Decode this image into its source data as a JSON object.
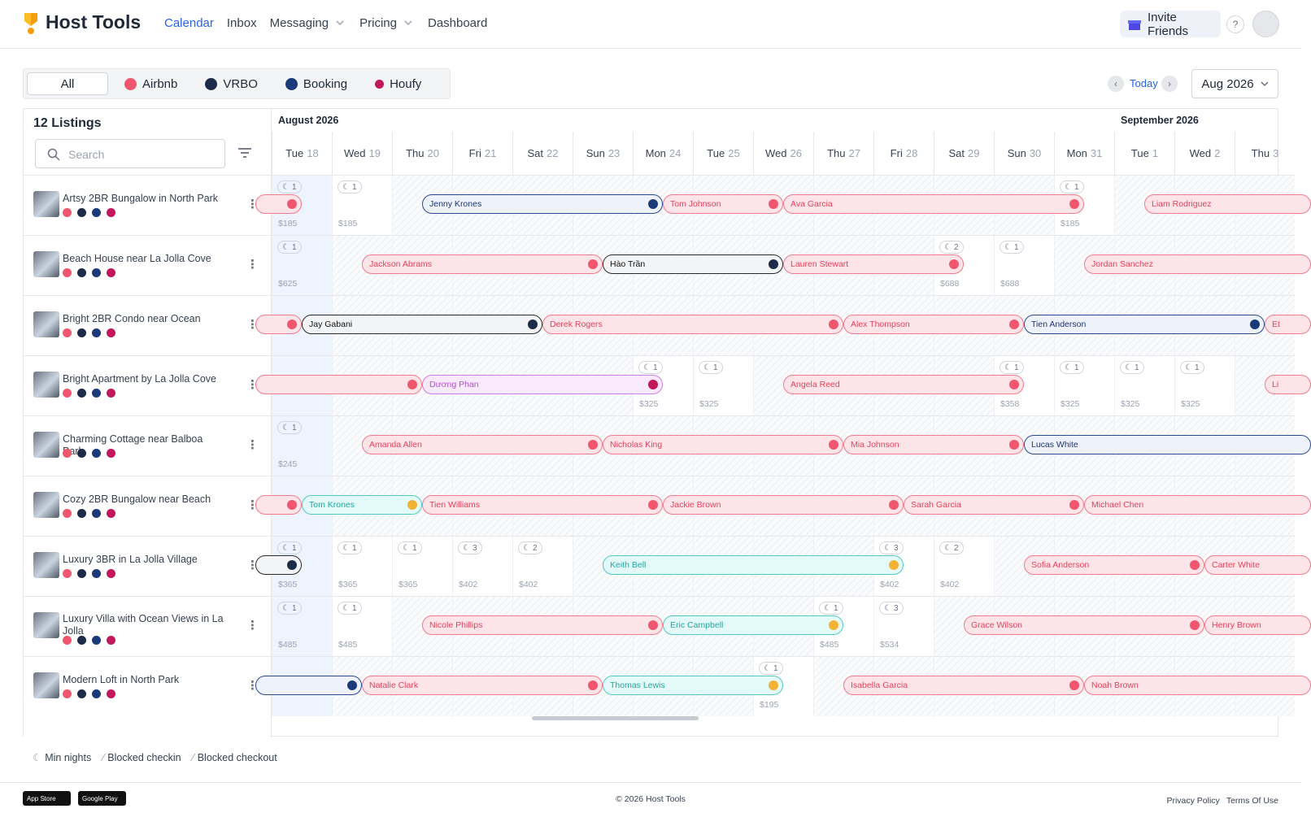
{
  "header": {
    "brand": "Host Tools",
    "nav": [
      "Calendar",
      "Inbox",
      "Messaging",
      "Pricing",
      "Dashboard"
    ],
    "invite": "Invite Friends",
    "help": "?"
  },
  "filters": {
    "tabs": [
      "All",
      "Airbnb",
      "VRBO",
      "Booking",
      "Houfy"
    ],
    "today": "Today",
    "month": "Aug 2026"
  },
  "sidebar": {
    "count": "12 Listings",
    "search": "Search"
  },
  "months": [
    {
      "name": "August 2026",
      "first_day": 0
    },
    {
      "name": "September 2026",
      "first_day": 14
    }
  ],
  "today_index": 0,
  "days": [
    {
      "dow": "Tue",
      "date": 18
    },
    {
      "dow": "Wed",
      "date": 19
    },
    {
      "dow": "Thu",
      "date": 20
    },
    {
      "dow": "Fri",
      "date": 21
    },
    {
      "dow": "Sat",
      "date": 22
    },
    {
      "dow": "Sun",
      "date": 23
    },
    {
      "dow": "Mon",
      "date": 24
    },
    {
      "dow": "Tue",
      "date": 25
    },
    {
      "dow": "Wed",
      "date": 26
    },
    {
      "dow": "Thu",
      "date": 27
    },
    {
      "dow": "Fri",
      "date": 28
    },
    {
      "dow": "Sat",
      "date": 29
    },
    {
      "dow": "Sun",
      "date": 30
    },
    {
      "dow": "Mon",
      "date": 31
    },
    {
      "dow": "Tue",
      "date": 1
    },
    {
      "dow": "Wed",
      "date": 2
    },
    {
      "dow": "Thu",
      "date": 3
    }
  ],
  "listings": [
    {
      "name": "Artsy 2BR Bungalow in North Park",
      "cells": [
        {
          "day": 0,
          "min": 1,
          "price": "$185"
        },
        {
          "day": 1,
          "min": 1,
          "price": "$185"
        },
        {
          "day": 13,
          "min": 1,
          "price": "$185"
        }
      ],
      "reservations": [
        {
          "channel": "airbnb",
          "start": null,
          "end": 0
        },
        {
          "guest": "Jenny Krones",
          "channel": "booking",
          "start": 2,
          "end": 6
        },
        {
          "guest": "Tom Johnson",
          "channel": "airbnb",
          "start": 6,
          "end": 8
        },
        {
          "guest": "Ava Garcia",
          "channel": "airbnb",
          "start": 8,
          "end": 13
        },
        {
          "guest": "Liam Rodriguez",
          "channel": "airbnb",
          "start": 14,
          "end": null
        }
      ]
    },
    {
      "name": "Beach House near La Jolla Cove",
      "cells": [
        {
          "day": 0,
          "min": 1,
          "price": "$625"
        },
        {
          "day": 11,
          "min": 2,
          "price": "$688"
        },
        {
          "day": 12,
          "min": 1,
          "price": "$688"
        }
      ],
      "reservations": [
        {
          "guest": "Jackson Abrams",
          "channel": "airbnb",
          "start": 1,
          "end": 5
        },
        {
          "guest": "Hào Trần",
          "channel": "vrbo",
          "start": 5,
          "end": 8
        },
        {
          "guest": "Lauren Stewart",
          "channel": "airbnb",
          "start": 8,
          "end": 11
        },
        {
          "guest": "Jordan Sanchez",
          "channel": "airbnb",
          "start": 13,
          "end": null
        }
      ]
    },
    {
      "name": "Bright 2BR Condo near Ocean",
      "cells": [],
      "reservations": [
        {
          "channel": "airbnb",
          "start": null,
          "end": 0
        },
        {
          "guest": "Jay Gabani",
          "channel": "vrbo",
          "start": 0,
          "end": 4
        },
        {
          "guest": "Derek Rogers",
          "channel": "airbnb",
          "start": 4,
          "end": 9
        },
        {
          "guest": "Alex Thompson",
          "channel": "airbnb",
          "start": 9,
          "end": 12
        },
        {
          "guest": "Tien Anderson",
          "channel": "booking",
          "start": 12,
          "end": 16
        },
        {
          "guest": "Et",
          "channel": "airbnb",
          "start": 16,
          "end": null
        }
      ]
    },
    {
      "name": "Bright Apartment by La Jolla Cove",
      "cells": [
        {
          "day": 6,
          "min": 1,
          "price": "$325"
        },
        {
          "day": 7,
          "min": 1,
          "price": "$325"
        },
        {
          "day": 12,
          "min": 1,
          "price": "$358"
        },
        {
          "day": 13,
          "min": 1,
          "price": "$325"
        },
        {
          "day": 14,
          "min": 1,
          "price": "$325"
        },
        {
          "day": 15,
          "min": 1,
          "price": "$325"
        }
      ],
      "reservations": [
        {
          "channel": "airbnb",
          "start": null,
          "end": 2
        },
        {
          "guest": "Dương Phan",
          "channel": "houfy",
          "start": 2,
          "end": 6
        },
        {
          "guest": "Angela Reed",
          "channel": "airbnb",
          "start": 8,
          "end": 12
        },
        {
          "guest": "Li",
          "channel": "airbnb",
          "start": 16,
          "end": null
        }
      ]
    },
    {
      "name": "Charming Cottage near Balboa Park",
      "cells": [
        {
          "day": 0,
          "min": 1,
          "price": "$245"
        }
      ],
      "reservations": [
        {
          "guest": "Amanda Allen",
          "channel": "airbnb",
          "start": 1,
          "end": 5
        },
        {
          "guest": "Nicholas King",
          "channel": "airbnb",
          "start": 5,
          "end": 9
        },
        {
          "guest": "Mia Johnson",
          "channel": "airbnb",
          "start": 9,
          "end": 12
        },
        {
          "guest": "Lucas White",
          "channel": "booking",
          "start": 12,
          "end": null
        }
      ]
    },
    {
      "name": "Cozy 2BR Bungalow near Beach",
      "cells": [],
      "reservations": [
        {
          "channel": "airbnb",
          "start": null,
          "end": 0
        },
        {
          "guest": "Tom Krones",
          "channel": "hosttools",
          "start": 0,
          "end": 2
        },
        {
          "guest": "Tien Williams",
          "channel": "airbnb",
          "start": 2,
          "end": 6
        },
        {
          "guest": "Jackie Brown",
          "channel": "airbnb",
          "start": 6,
          "end": 10
        },
        {
          "guest": "Sarah Garcia",
          "channel": "airbnb",
          "start": 10,
          "end": 13
        },
        {
          "guest": "Michael Chen",
          "channel": "airbnb",
          "start": 13,
          "end": null
        }
      ]
    },
    {
      "name": "Luxury 3BR in La Jolla Village",
      "cells": [
        {
          "day": 0,
          "min": 1,
          "price": "$365"
        },
        {
          "day": 1,
          "min": 1,
          "price": "$365"
        },
        {
          "day": 2,
          "min": 1,
          "price": "$365"
        },
        {
          "day": 3,
          "min": 3,
          "price": "$402"
        },
        {
          "day": 4,
          "min": 2,
          "price": "$402"
        },
        {
          "day": 10,
          "min": 3,
          "price": "$402"
        },
        {
          "day": 11,
          "min": 2,
          "price": "$402"
        }
      ],
      "reservations": [
        {
          "channel": "vrbo",
          "start": null,
          "end": 0
        },
        {
          "guest": "Keith Bell",
          "channel": "hosttools",
          "start": 5,
          "end": 10
        },
        {
          "guest": "Sofia Anderson",
          "channel": "airbnb",
          "start": 12,
          "end": 15
        },
        {
          "guest": "Carter White",
          "channel": "airbnb",
          "start": 15,
          "end": null
        }
      ]
    },
    {
      "name": "Luxury Villa with Ocean Views in La Jolla",
      "cells": [
        {
          "day": 0,
          "min": 1,
          "price": "$485"
        },
        {
          "day": 1,
          "min": 1,
          "price": "$485"
        },
        {
          "day": 9,
          "min": 1,
          "price": "$485"
        },
        {
          "day": 10,
          "min": 3,
          "price": "$534"
        }
      ],
      "reservations": [
        {
          "guest": "Nicole Phillips",
          "channel": "airbnb",
          "start": 2,
          "end": 6
        },
        {
          "guest": "Eric Campbell",
          "channel": "hosttools",
          "start": 6,
          "end": 9
        },
        {
          "guest": "Grace Wilson",
          "channel": "airbnb",
          "start": 11,
          "end": 15
        },
        {
          "guest": "Henry Brown",
          "channel": "airbnb",
          "start": 15,
          "end": null
        }
      ]
    },
    {
      "name": "Modern Loft in North Park",
      "cells": [
        {
          "day": 8,
          "min": 1,
          "price": "$195"
        }
      ],
      "reservations": [
        {
          "channel": "booking",
          "start": null,
          "end": 1
        },
        {
          "guest": "Natalie Clark",
          "channel": "airbnb",
          "start": 1,
          "end": 5
        },
        {
          "guest": "Thomas Lewis",
          "channel": "hosttools",
          "start": 5,
          "end": 8
        },
        {
          "guest": "Isabella Garcia",
          "channel": "airbnb",
          "start": 9,
          "end": 13
        },
        {
          "guest": "Noah Brown",
          "channel": "airbnb",
          "start": 13,
          "end": null
        }
      ]
    }
  ],
  "legend": [
    "Min nights",
    "Blocked checkin",
    "Blocked checkout"
  ],
  "footer": {
    "badges": [
      "App Store",
      "Google Play"
    ],
    "copyright": "© 2026 Host Tools",
    "links": [
      "Privacy Policy",
      "Terms Of Use"
    ]
  }
}
